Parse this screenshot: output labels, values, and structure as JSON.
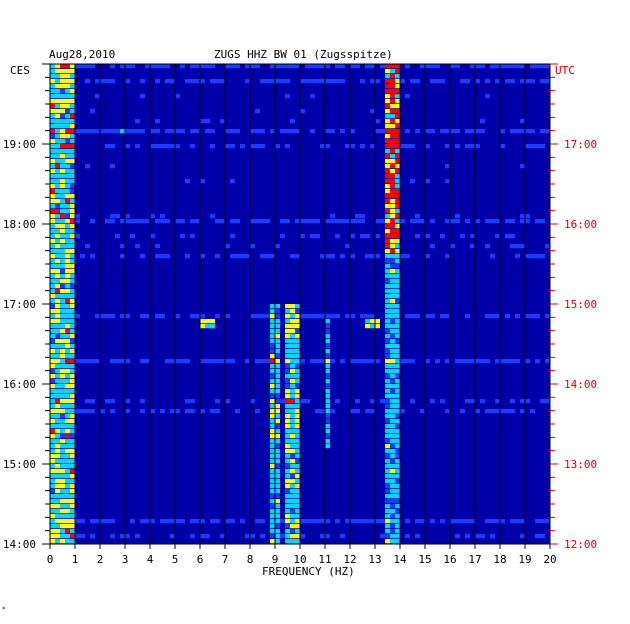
{
  "header": {
    "date": "Aug28,2010",
    "station": "ZUGS HHZ BW 01 (Zugsspitze)",
    "left_timezone": "CES",
    "right_timezone": "UTC"
  },
  "footnote": "*",
  "chart_data": {
    "type": "heatmap",
    "title": "ZUGS HHZ BW 01 (Zugsspitze)",
    "date": "Aug28,2010",
    "xlabel": "FREQUENCY (HZ)",
    "xlim": [
      0,
      20
    ],
    "x_ticks": [
      "0",
      "1",
      "2",
      "3",
      "4",
      "5",
      "6",
      "7",
      "8",
      "9",
      "10",
      "11",
      "12",
      "13",
      "14",
      "15",
      "16",
      "17",
      "18",
      "19",
      "20"
    ],
    "left_axis": {
      "timezone": "CES",
      "ticks": [
        "19:00",
        "18:00",
        "17:00",
        "16:00",
        "15:00",
        "14:00"
      ],
      "range_hours": [
        14.0,
        20.0
      ]
    },
    "right_axis": {
      "timezone": "UTC",
      "ticks": [
        "17:00",
        "16:00",
        "15:00",
        "14:00",
        "13:00",
        "12:00"
      ],
      "range_hours": [
        12.0,
        18.0
      ],
      "color": "#d00000"
    },
    "background_color": "#0000a8",
    "colorscale": [
      "#0000a8",
      "#1a3cff",
      "#00d7ff",
      "#ffff00",
      "#ff0000"
    ],
    "features": [
      {
        "band_hz": [
          13.5,
          14.0
        ],
        "time_ces": [
          17.6,
          20.0
        ],
        "level": 0.85
      },
      {
        "band_hz": [
          13.5,
          14.0
        ],
        "time_ces": [
          14.0,
          17.6
        ],
        "level": 0.45
      },
      {
        "band_hz": [
          8.9,
          9.2
        ],
        "time_ces": [
          14.0,
          17.0
        ],
        "level": 0.5
      },
      {
        "band_hz": [
          9.5,
          9.9
        ],
        "time_ces": [
          14.0,
          17.0
        ],
        "level": 0.55
      },
      {
        "band_hz": [
          11.0,
          11.2
        ],
        "time_ces": [
          15.2,
          16.8
        ],
        "level": 0.4
      },
      {
        "band_hz": [
          0.0,
          1.0
        ],
        "time_ces": [
          14.0,
          20.0
        ],
        "level": 0.6
      },
      {
        "band_hz": [
          6.0,
          6.5
        ],
        "time_ces": [
          16.7,
          16.8
        ],
        "level": 0.6
      },
      {
        "band_hz": [
          12.7,
          13.2
        ],
        "time_ces": [
          16.7,
          16.8
        ],
        "level": 0.6
      }
    ]
  }
}
